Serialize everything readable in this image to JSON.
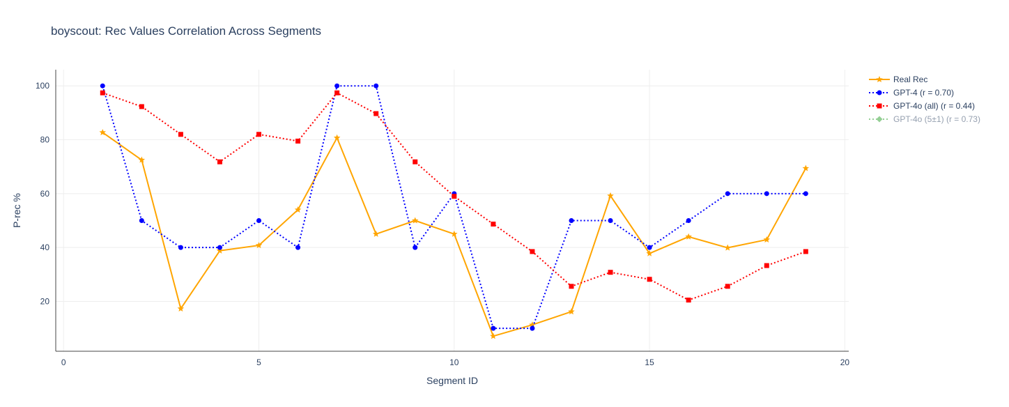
{
  "chart_data": {
    "type": "line",
    "title": "boyscout: Rec Values Correlation Across Segments",
    "xlabel": "Segment ID",
    "ylabel": "P-rec %",
    "xlim": [
      -0.2,
      20.1
    ],
    "ylim": [
      1.5,
      106
    ],
    "xticks": [
      0,
      5,
      10,
      15,
      20
    ],
    "yticks": [
      20,
      40,
      60,
      80,
      100
    ],
    "grid": true,
    "legend_position": "top-right",
    "series": [
      {
        "name": "Real Rec",
        "color": "#ffa500",
        "dash": "solid",
        "marker": "star",
        "visible": true,
        "x": [
          1,
          2,
          3,
          4,
          5,
          6,
          7,
          8,
          9,
          10,
          11,
          12,
          13,
          14,
          15,
          16,
          17,
          18,
          19
        ],
        "values": [
          82.7,
          72.5,
          17.3,
          38.8,
          40.8,
          54,
          80.7,
          45,
          50,
          45,
          7.1,
          11.3,
          16.2,
          59.2,
          37.8,
          44,
          39.9,
          42.9,
          69.4
        ]
      },
      {
        "name": "GPT-4 (r = 0.70)",
        "color": "#0000ff",
        "dash": "dot",
        "marker": "circle",
        "visible": true,
        "x": [
          1,
          2,
          3,
          4,
          5,
          6,
          7,
          8,
          9,
          10,
          11,
          12,
          13,
          14,
          15,
          16,
          17,
          18,
          19
        ],
        "values": [
          100,
          50,
          40,
          40,
          50,
          40,
          100,
          100,
          40,
          60,
          10,
          10,
          50,
          50,
          40,
          50,
          60,
          60,
          60
        ]
      },
      {
        "name": "GPT-4o (all) (r = 0.44)",
        "color": "#ff0000",
        "dash": "dot",
        "marker": "square",
        "visible": true,
        "x": [
          1,
          2,
          3,
          4,
          5,
          6,
          7,
          8,
          9,
          10,
          11,
          12,
          13,
          14,
          15,
          16,
          17,
          18,
          19
        ],
        "values": [
          97.4,
          92.3,
          82,
          71.8,
          82,
          79.5,
          97.4,
          89.7,
          71.8,
          59,
          48.7,
          38.5,
          25.6,
          30.8,
          28.2,
          20.5,
          25.6,
          33.3,
          38.5
        ]
      },
      {
        "name": "GPT-4o (5±1) (r = 0.73)",
        "color": "#2ca02c",
        "dash": "dot",
        "marker": "diamond",
        "visible": false,
        "x": [],
        "values": []
      }
    ]
  }
}
